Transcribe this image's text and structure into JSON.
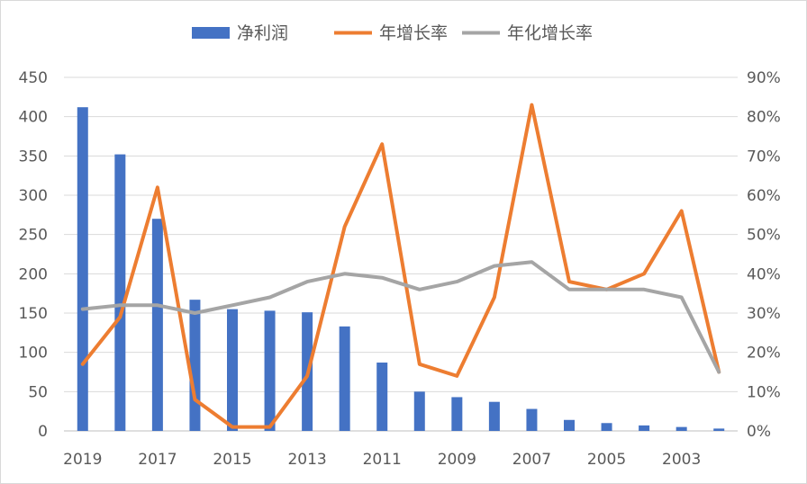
{
  "chart_data": {
    "type": "bar",
    "categories": [
      "2019",
      "2018",
      "2017",
      "2016",
      "2015",
      "2014",
      "2013",
      "2012",
      "2011",
      "2010",
      "2009",
      "2008",
      "2007",
      "2006",
      "2005",
      "2004",
      "2003",
      "2002"
    ],
    "x_tick_labels": [
      "2019",
      "2017",
      "2015",
      "2013",
      "2011",
      "2009",
      "2007",
      "2005",
      "2003"
    ],
    "series": [
      {
        "name": "净利润",
        "type": "bar",
        "axis": "left",
        "color": "#4472c4",
        "values": [
          412,
          352,
          270,
          167,
          155,
          153,
          151,
          133,
          87,
          50,
          43,
          37,
          28,
          14,
          10,
          7,
          5,
          3
        ]
      },
      {
        "name": "年增长率",
        "type": "line",
        "axis": "right",
        "color": "#ed7d31",
        "values": [
          17,
          29,
          62,
          8,
          1,
          1,
          14,
          52,
          73,
          17,
          14,
          34,
          83,
          38,
          36,
          40,
          56,
          15
        ]
      },
      {
        "name": "年化增长率",
        "type": "line",
        "axis": "right",
        "color": "#a5a5a5",
        "values": [
          31,
          32,
          32,
          30,
          32,
          34,
          38,
          40,
          39,
          36,
          38,
          42,
          43,
          36,
          36,
          36,
          34,
          15
        ]
      }
    ],
    "left_axis": {
      "ylim": [
        0,
        450
      ],
      "ticks": [
        "0",
        "50",
        "100",
        "150",
        "200",
        "250",
        "300",
        "350",
        "400",
        "450"
      ]
    },
    "right_axis": {
      "ylim": [
        0,
        90
      ],
      "ticks": [
        "0%",
        "10%",
        "20%",
        "30%",
        "40%",
        "50%",
        "60%",
        "70%",
        "80%",
        "90%"
      ]
    },
    "grid": true,
    "legend": "top-center"
  }
}
